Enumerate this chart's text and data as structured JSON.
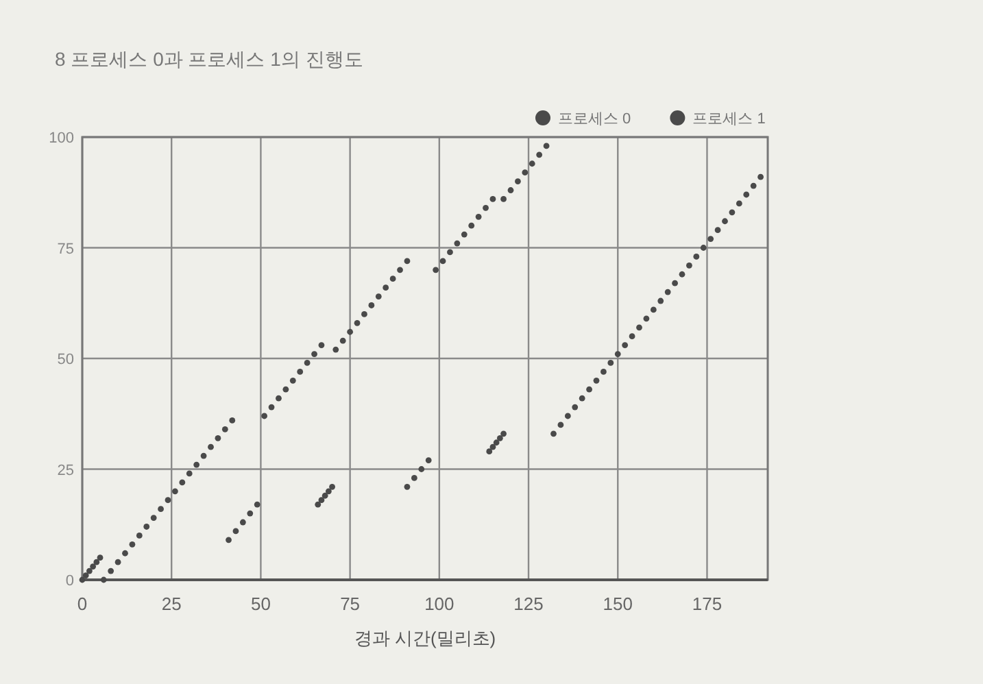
{
  "chart_data": {
    "type": "scatter",
    "title": "8 프로세스 0과 프로세스 1의 진행도",
    "xlabel": "경과 시간(밀리초)",
    "xlim": [
      0,
      192
    ],
    "xticks": [
      0,
      25,
      50,
      75,
      100,
      125,
      150,
      175
    ],
    "ylim": [
      0,
      100
    ],
    "yticks": [
      0,
      25,
      50,
      75,
      100
    ],
    "grid": true,
    "legend": "top right",
    "marker": "circle",
    "series": [
      {
        "name": "프로세스 0",
        "color": "#4a4a4a",
        "x": [
          6,
          8,
          10,
          12,
          14,
          16,
          18,
          20,
          22,
          24,
          26,
          28,
          30,
          32,
          34,
          36,
          38,
          40,
          42,
          51,
          53,
          55,
          57,
          59,
          61,
          63,
          65,
          67,
          71,
          73,
          75,
          77,
          79,
          81,
          83,
          85,
          87,
          89,
          91,
          99,
          101,
          103,
          105,
          107,
          109,
          111,
          113,
          115,
          118,
          120,
          122,
          124,
          126,
          128,
          130
        ],
        "values": [
          0,
          2,
          4,
          6,
          8,
          10,
          12,
          14,
          16,
          18,
          20,
          22,
          24,
          26,
          28,
          30,
          32,
          34,
          36,
          37,
          39,
          41,
          43,
          45,
          47,
          49,
          51,
          53,
          52,
          54,
          56,
          58,
          60,
          62,
          64,
          66,
          68,
          70,
          72,
          70,
          72,
          74,
          76,
          78,
          80,
          82,
          84,
          86,
          86,
          88,
          90,
          92,
          94,
          96,
          98
        ]
      },
      {
        "name": "프로세스 1",
        "color": "#4a4a4a",
        "x": [
          0,
          1,
          2,
          3,
          4,
          5,
          41,
          43,
          45,
          47,
          49,
          66,
          67,
          68,
          69,
          70,
          91,
          93,
          95,
          97,
          114,
          115,
          116,
          117,
          118,
          132,
          134,
          136,
          138,
          140,
          142,
          144,
          146,
          148,
          150,
          152,
          154,
          156,
          158,
          160,
          162,
          164,
          166,
          168,
          170,
          172,
          174,
          176,
          178,
          180,
          182,
          184,
          186,
          188,
          190
        ],
        "values": [
          0,
          1,
          2,
          3,
          4,
          5,
          9,
          11,
          13,
          15,
          17,
          17,
          18,
          19,
          20,
          21,
          21,
          23,
          25,
          27,
          29,
          30,
          31,
          32,
          33,
          33,
          35,
          37,
          39,
          41,
          43,
          45,
          47,
          49,
          51,
          53,
          55,
          57,
          59,
          61,
          63,
          65,
          67,
          69,
          71,
          73,
          75,
          77,
          79,
          81,
          83,
          85,
          87,
          89,
          91
        ]
      }
    ]
  }
}
